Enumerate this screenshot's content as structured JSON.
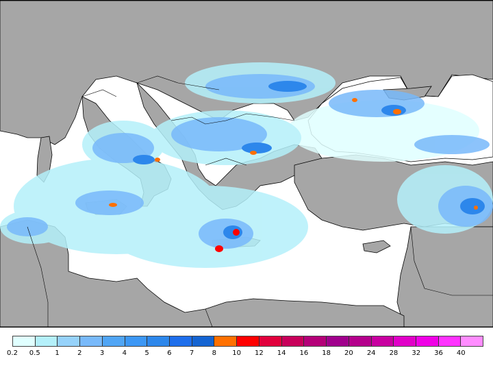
{
  "colors": {
    "sea": "#ffffff",
    "land": "#a6a6a6",
    "border": "#000000"
  },
  "legend": {
    "labels": [
      "0.2",
      "0.5",
      "1",
      "2",
      "3",
      "4",
      "5",
      "6",
      "7",
      "8",
      "10",
      "12",
      "14",
      "16",
      "18",
      "20",
      "24",
      "28",
      "32",
      "36",
      "40"
    ],
    "swatches": [
      "#e0ffff",
      "#b4f0fa",
      "#96d2fa",
      "#78b9fa",
      "#50a5f5",
      "#3c97f5",
      "#2d87eb",
      "#1e6eeb",
      "#1464d2",
      "#ff7000",
      "#ff0000",
      "#e1003c",
      "#c8005a",
      "#b40078",
      "#a0008c",
      "#b4008c",
      "#c800a0",
      "#e100c8",
      "#f000e6",
      "#ff32ff",
      "#ff8cff"
    ]
  }
}
